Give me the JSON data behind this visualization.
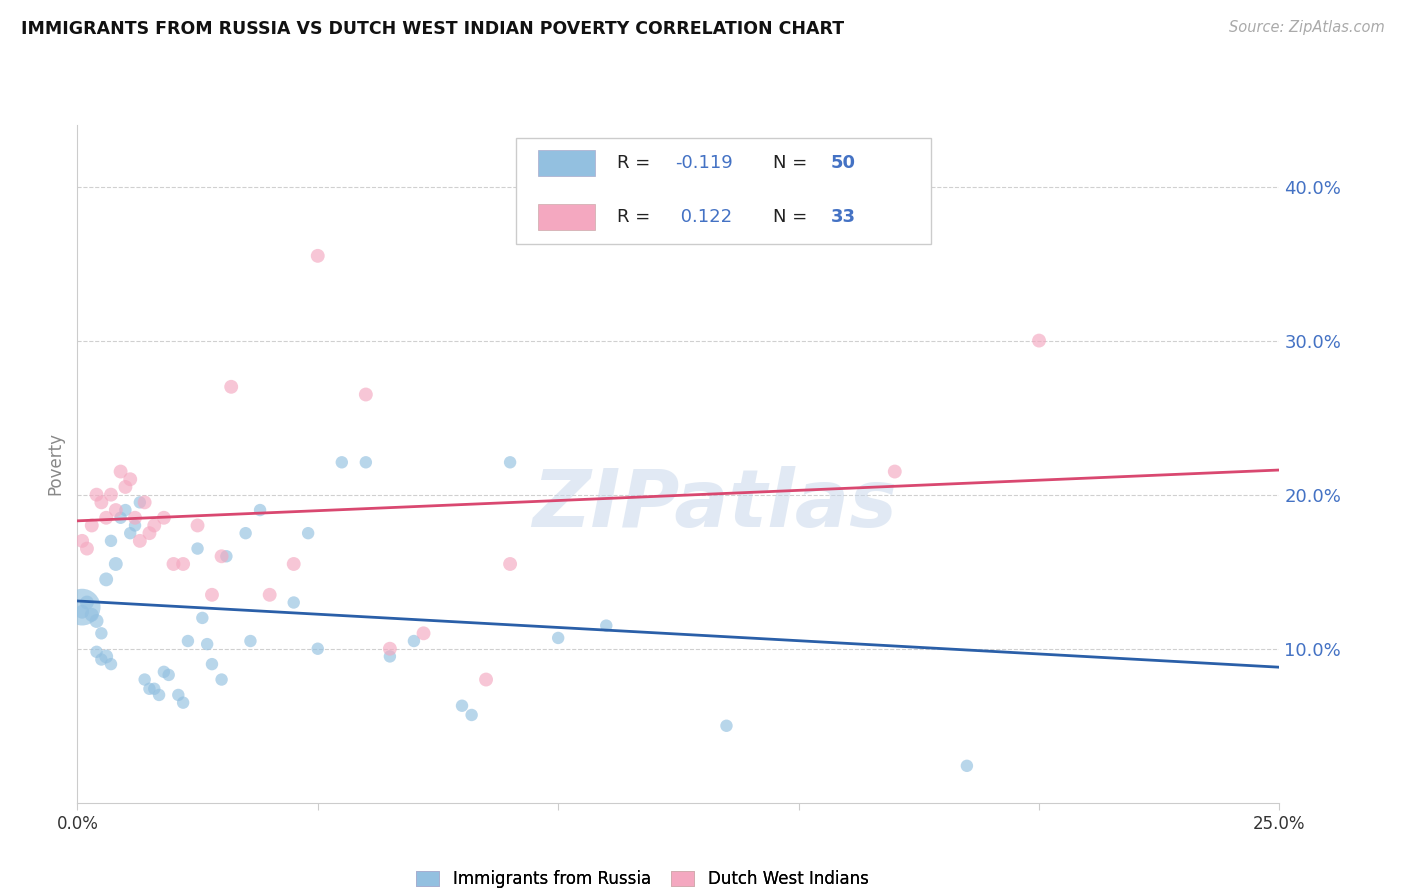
{
  "title": "IMMIGRANTS FROM RUSSIA VS DUTCH WEST INDIAN POVERTY CORRELATION CHART",
  "source": "Source: ZipAtlas.com",
  "ylabel": "Poverty",
  "ytick_values": [
    0.1,
    0.2,
    0.3,
    0.4
  ],
  "ytick_labels": [
    "10.0%",
    "20.0%",
    "30.0%",
    "40.0%"
  ],
  "xlim": [
    0.0,
    0.25
  ],
  "ylim": [
    0.0,
    0.44
  ],
  "blue_color": "#93c0e0",
  "pink_color": "#f4a8c0",
  "line_blue_color": "#2a5fa8",
  "line_pink_color": "#d94870",
  "legend_r1_label": "R = ",
  "legend_r1_val": "-0.119",
  "legend_n1_label": "N = ",
  "legend_n1_val": "50",
  "legend_r2_label": "R =  ",
  "legend_r2_val": "0.122",
  "legend_n2_label": "N = ",
  "legend_n2_val": "33",
  "legend_text_color": "#4472c4",
  "blue_trend_x": [
    0.0,
    0.25
  ],
  "blue_trend_y": [
    0.131,
    0.088
  ],
  "pink_trend_x": [
    0.0,
    0.25
  ],
  "pink_trend_y": [
    0.183,
    0.216
  ],
  "watermark": "ZIPatlas",
  "blue_points_x": [
    0.001,
    0.001,
    0.002,
    0.003,
    0.004,
    0.004,
    0.005,
    0.005,
    0.006,
    0.006,
    0.007,
    0.007,
    0.008,
    0.009,
    0.01,
    0.011,
    0.012,
    0.013,
    0.014,
    0.015,
    0.016,
    0.017,
    0.018,
    0.019,
    0.021,
    0.022,
    0.023,
    0.025,
    0.026,
    0.027,
    0.028,
    0.03,
    0.031,
    0.035,
    0.036,
    0.038,
    0.045,
    0.048,
    0.05,
    0.055,
    0.06,
    0.065,
    0.07,
    0.08,
    0.082,
    0.09,
    0.1,
    0.11,
    0.135,
    0.185
  ],
  "blue_points_y": [
    0.127,
    0.124,
    0.13,
    0.122,
    0.118,
    0.098,
    0.11,
    0.093,
    0.095,
    0.145,
    0.09,
    0.17,
    0.155,
    0.185,
    0.19,
    0.175,
    0.18,
    0.195,
    0.08,
    0.074,
    0.074,
    0.07,
    0.085,
    0.083,
    0.07,
    0.065,
    0.105,
    0.165,
    0.12,
    0.103,
    0.09,
    0.08,
    0.16,
    0.175,
    0.105,
    0.19,
    0.13,
    0.175,
    0.1,
    0.221,
    0.221,
    0.095,
    0.105,
    0.063,
    0.057,
    0.221,
    0.107,
    0.115,
    0.05,
    0.024
  ],
  "blue_points_s": [
    700,
    100,
    100,
    100,
    100,
    80,
    80,
    80,
    100,
    100,
    80,
    80,
    100,
    80,
    80,
    80,
    80,
    80,
    80,
    80,
    80,
    80,
    80,
    80,
    80,
    80,
    80,
    80,
    80,
    80,
    80,
    80,
    80,
    80,
    80,
    80,
    80,
    80,
    80,
    80,
    80,
    80,
    80,
    80,
    80,
    80,
    80,
    80,
    80,
    80
  ],
  "pink_points_x": [
    0.001,
    0.002,
    0.003,
    0.004,
    0.005,
    0.006,
    0.007,
    0.008,
    0.009,
    0.01,
    0.011,
    0.012,
    0.013,
    0.014,
    0.015,
    0.016,
    0.018,
    0.02,
    0.022,
    0.025,
    0.028,
    0.03,
    0.032,
    0.04,
    0.045,
    0.05,
    0.06,
    0.065,
    0.072,
    0.085,
    0.09,
    0.17,
    0.2
  ],
  "pink_points_y": [
    0.17,
    0.165,
    0.18,
    0.2,
    0.195,
    0.185,
    0.2,
    0.19,
    0.215,
    0.205,
    0.21,
    0.185,
    0.17,
    0.195,
    0.175,
    0.18,
    0.185,
    0.155,
    0.155,
    0.18,
    0.135,
    0.16,
    0.27,
    0.135,
    0.155,
    0.355,
    0.265,
    0.1,
    0.11,
    0.08,
    0.155,
    0.215,
    0.3
  ],
  "pink_points_s": [
    100,
    100,
    100,
    100,
    100,
    100,
    100,
    100,
    100,
    100,
    100,
    100,
    100,
    100,
    100,
    100,
    100,
    100,
    100,
    100,
    100,
    100,
    100,
    100,
    100,
    100,
    100,
    100,
    100,
    100,
    100,
    100,
    100
  ],
  "background": "#ffffff",
  "grid_color": "#d0d0d0",
  "axis_color": "#4472c4",
  "spine_color": "#cccccc"
}
